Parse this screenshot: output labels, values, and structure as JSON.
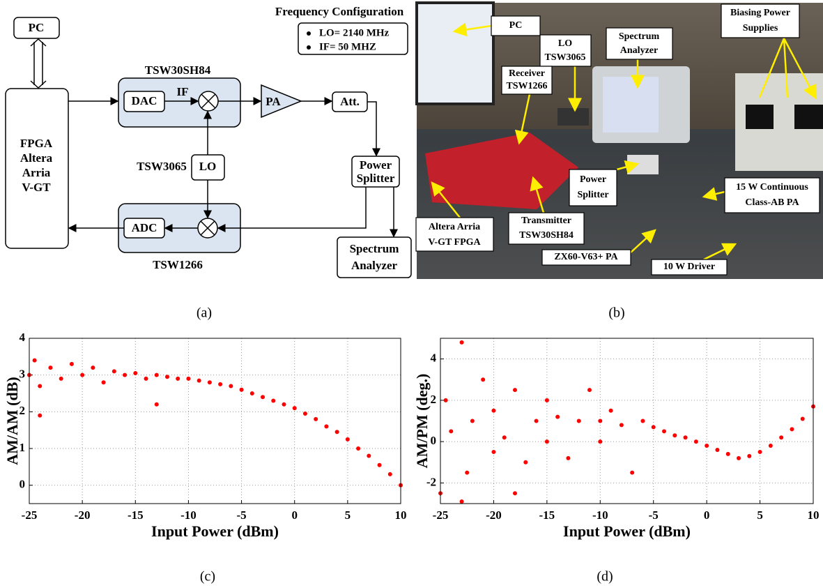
{
  "diagram": {
    "freq_title": "Frequency Configuration",
    "freq_items": [
      "LO= 2140 MHz",
      "IF= 50 MHZ"
    ],
    "pc": "PC",
    "fpga": [
      "FPGA",
      "Altera",
      "Arria",
      "V-GT"
    ],
    "tx_board": "TSW30SH84",
    "dac": "DAC",
    "if": "IF",
    "pa": "PA",
    "att": "Att.",
    "lo_board": "TSW3065",
    "lo": "LO",
    "splitter": [
      "Power",
      "Splitter"
    ],
    "adc": "ADC",
    "rx_board": "TSW1266",
    "spectrum": [
      "Spectrum",
      "Analyzer"
    ]
  },
  "photo": {
    "labels": [
      [
        "PC"
      ],
      [
        "LO",
        "TSW3065"
      ],
      [
        "Spectrum",
        "Analyzer"
      ],
      [
        "Biasing Power",
        "Supplies"
      ],
      [
        "Receiver",
        "TSW1266"
      ],
      [
        "Power",
        "Splitter"
      ],
      [
        "15 W Continuous",
        "Class-AB PA"
      ],
      [
        "Altera Arria",
        "V-GT FPGA"
      ],
      [
        "Transmitter",
        "TSW30SH84"
      ],
      [
        "ZX60-V63+ PA"
      ],
      [
        "10 W Driver"
      ]
    ]
  },
  "captions": [
    "(a)",
    "(b)",
    "(c)",
    "(d)"
  ],
  "chart_data": [
    {
      "type": "scatter",
      "x_label": "Input Power (dBm)",
      "y_label": "AM/AM (dB)",
      "color": "#ff0000",
      "grid": true,
      "xlim": [
        -25,
        10
      ],
      "xticks": [
        -25,
        -20,
        -15,
        -10,
        -5,
        0,
        5,
        10
      ],
      "ylim": [
        -0.5,
        4
      ],
      "yticks": [
        0,
        1,
        2,
        3,
        4
      ],
      "x": [
        -25,
        -24.5,
        -24,
        -24,
        -23,
        -22,
        -21,
        -20,
        -19,
        -18,
        -17,
        -16,
        -15,
        -14,
        -13,
        -13,
        -12,
        -11,
        -10,
        -9,
        -8,
        -7,
        -6,
        -5,
        -4,
        -3,
        -2,
        -1,
        0,
        1,
        2,
        3,
        4,
        5,
        6,
        7,
        8,
        9,
        10
      ],
      "values": [
        3.0,
        3.4,
        2.7,
        1.9,
        3.2,
        2.9,
        3.3,
        3.0,
        3.2,
        2.8,
        3.1,
        3.0,
        3.05,
        2.9,
        3.0,
        2.2,
        2.95,
        2.9,
        2.9,
        2.85,
        2.8,
        2.75,
        2.7,
        2.6,
        2.5,
        2.4,
        2.3,
        2.2,
        2.1,
        1.95,
        1.8,
        1.6,
        1.45,
        1.25,
        1.0,
        0.8,
        0.55,
        0.3,
        0.0
      ]
    },
    {
      "type": "scatter",
      "x_label": "Input Power (dBm)",
      "y_label": "AM/PM (deg.)",
      "color": "#ff0000",
      "grid": true,
      "xlim": [
        -25,
        10
      ],
      "xticks": [
        -25,
        -20,
        -15,
        -10,
        -5,
        0,
        5,
        10
      ],
      "ylim": [
        -3,
        5
      ],
      "yticks": [
        -2,
        0,
        2,
        4
      ],
      "x": [
        -25,
        -24.5,
        -24,
        -23,
        -23,
        -22.5,
        -22,
        -21,
        -20,
        -20,
        -19,
        -18,
        -18,
        -17,
        -16,
        -15,
        -15,
        -14,
        -13,
        -12,
        -11,
        -10,
        -10,
        -9,
        -8,
        -7,
        -6,
        -5,
        -4,
        -3,
        -2,
        -1,
        0,
        1,
        2,
        3,
        4,
        5,
        6,
        7,
        8,
        9,
        10
      ],
      "values": [
        -2.5,
        2,
        0.5,
        4.8,
        -2.9,
        -1.5,
        1,
        3,
        -0.5,
        1.5,
        0.2,
        2.5,
        -2.5,
        -1,
        1,
        2,
        0,
        1.2,
        -0.8,
        1,
        2.5,
        1,
        0,
        1.5,
        0.8,
        -1.5,
        1,
        0.7,
        0.5,
        0.3,
        0.2,
        0,
        -0.2,
        -0.4,
        -0.6,
        -0.8,
        -0.7,
        -0.5,
        -0.2,
        0.2,
        0.6,
        1.1,
        1.7
      ]
    }
  ]
}
